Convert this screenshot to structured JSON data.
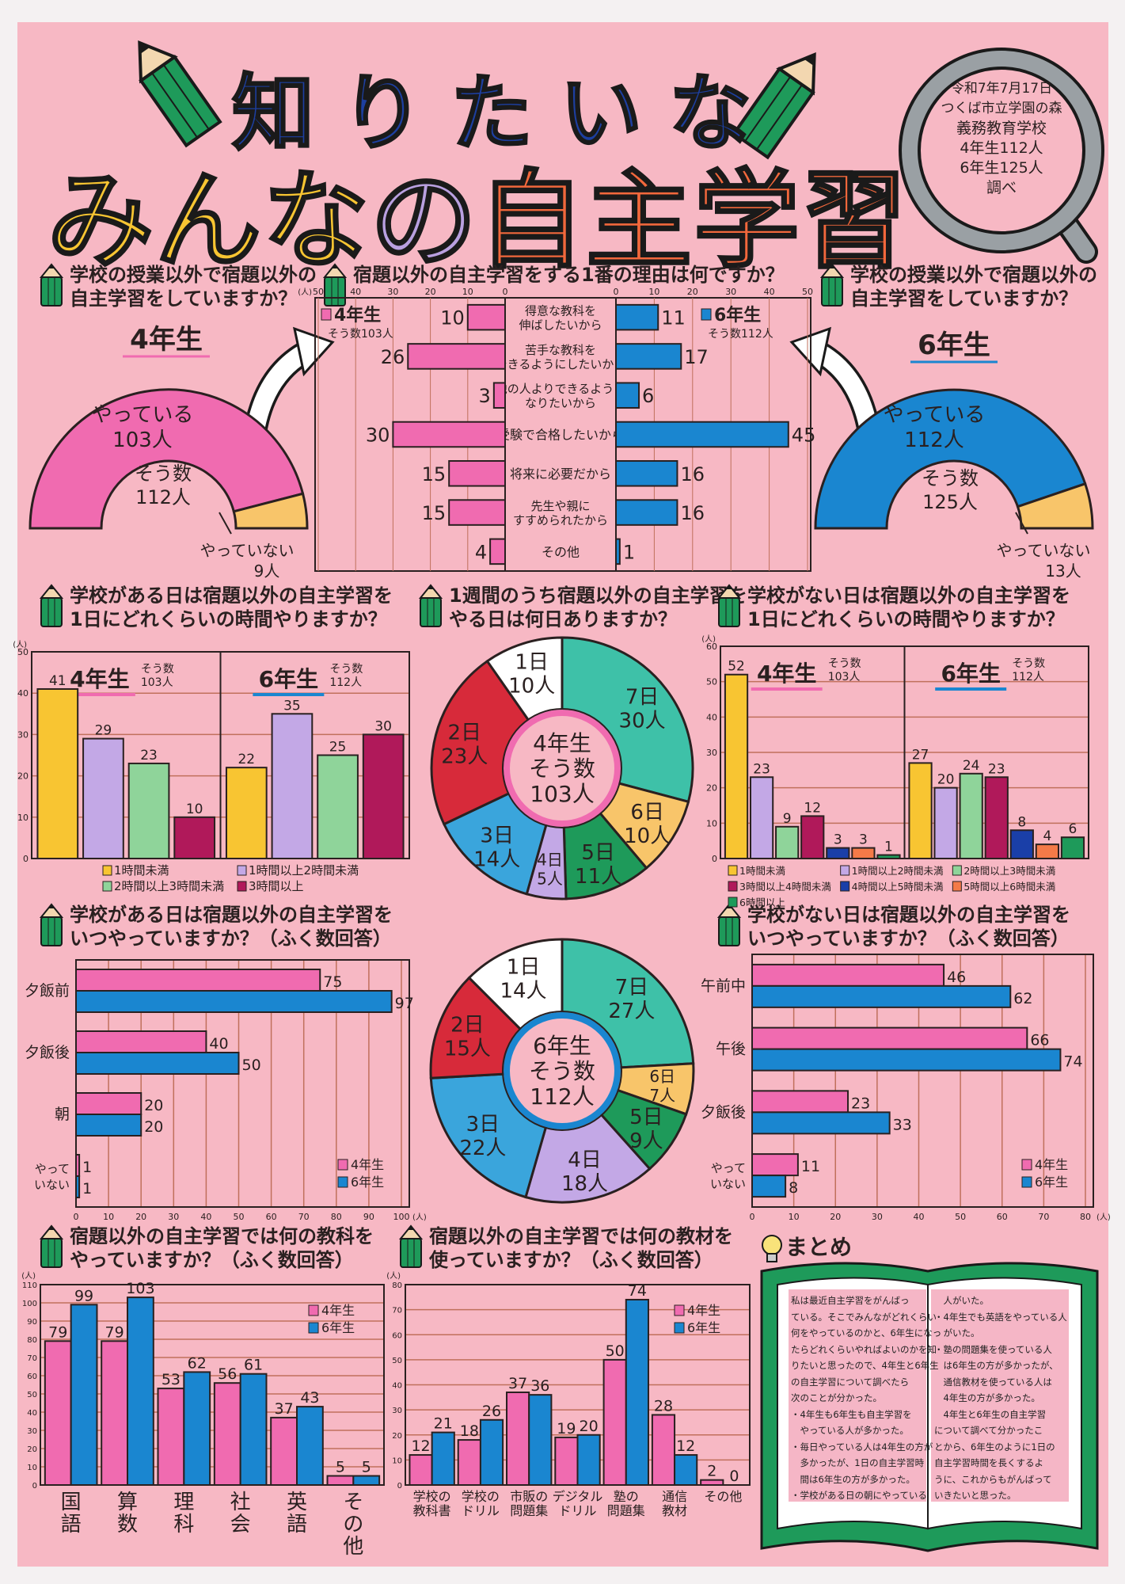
{
  "title": {
    "line1": "知りたいな",
    "line2_a": "みんな",
    "line2_b": "の",
    "line2_c": "自主学習"
  },
  "survey_info": [
    "令和7年7月17日",
    "つくば市立学園の森",
    "義務教育学校",
    "4年生112人",
    "6年生125人",
    "調べ"
  ],
  "questions": {
    "q_do_4": [
      "学校の授業以外で宿題以外の",
      "自主学習をしていますか？"
    ],
    "q_reason": [
      "宿題以外の自主学習をする1番の理由は何ですか？"
    ],
    "q_do_6": [
      "学校の授業以外で宿題以外の",
      "自主学習をしていますか？"
    ],
    "q_time_school": [
      "学校がある日は宿題以外の自主学習を",
      "1日にどれくらいの時間やりますか？"
    ],
    "q_days": [
      "1週間のうち宿題以外の自主学習を",
      "やる日は何日ありますか？"
    ],
    "q_time_noschool": [
      "学校がない日は宿題以外の自主学習を",
      "1日にどれくらいの時間やりますか？"
    ],
    "q_when_school": [
      "学校がある日は宿題以外の自主学習を",
      "いつやっていますか？（ふく数回答）"
    ],
    "q_when_noschool": [
      "学校がない日は宿題以外の自主学習を",
      "いつやっていますか？（ふく数回答）"
    ],
    "q_subjects": [
      "宿題以外の自主学習では何の教科を",
      "やっていますか？（ふく数回答）"
    ],
    "q_materials": [
      "宿題以外の自主学習では何の教材を",
      "使っていますか？（ふく数回答）"
    ]
  },
  "colors": {
    "background": "#f7b8c4",
    "grade4": "#f06bb0",
    "grade6": "#1a86d0",
    "title_blue": "#1d3fa0",
    "title_yellow": "#f8c532",
    "title_purple": "#b9a0e0",
    "title_orange": "#f2683c",
    "book_green": "#1e9a5a"
  },
  "chart_data": [
    {
      "type": "pie",
      "variant": "semi-donut",
      "grade": "4年生",
      "total_label": [
        "そう数",
        "112人"
      ],
      "slices": [
        {
          "label": "やっている",
          "value": 103,
          "value_label": "103人",
          "color": "#f06bb0"
        },
        {
          "label": "やっていない",
          "value": 9,
          "value_label": "9人",
          "color": "#f8c56a"
        }
      ]
    },
    {
      "type": "bar",
      "orientation": "horizontal-butterfly",
      "unit": "(人)",
      "xlim": [
        0,
        50
      ],
      "ticks": [
        50,
        40,
        30,
        20,
        10,
        0
      ],
      "categories": [
        {
          "lines": [
            "得意な教科を",
            "伸ばしたいから"
          ]
        },
        {
          "lines": [
            "苦手な教科を",
            "できるようにしたいから"
          ]
        },
        {
          "lines": [
            "他の人よりできるように",
            "なりたいから"
          ]
        },
        {
          "lines": [
            "受験で合格したいから"
          ]
        },
        {
          "lines": [
            "将来に必要だから"
          ]
        },
        {
          "lines": [
            "先生や親に",
            "すすめられたから"
          ]
        },
        {
          "lines": [
            "その他"
          ]
        }
      ],
      "series": [
        {
          "name": "4年生",
          "total_label": "そう数103人",
          "color": "#f06bb0",
          "values": [
            10,
            26,
            3,
            30,
            15,
            15,
            4
          ]
        },
        {
          "name": "6年生",
          "total_label": "そう数112人",
          "color": "#1a86d0",
          "values": [
            11,
            17,
            6,
            45,
            16,
            16,
            1
          ]
        }
      ]
    },
    {
      "type": "pie",
      "variant": "semi-donut",
      "grade": "6年生",
      "total_label": [
        "そう数",
        "125人"
      ],
      "slices": [
        {
          "label": "やっている",
          "value": 112,
          "value_label": "112人",
          "color": "#1a86d0"
        },
        {
          "label": "やっていない",
          "value": 13,
          "value_label": "13人",
          "color": "#f8c56a"
        }
      ]
    },
    {
      "type": "bar",
      "unit": "(人)",
      "ylim": [
        0,
        50
      ],
      "yticks": [
        0,
        10,
        20,
        30,
        40,
        50
      ],
      "categories": [
        {
          "label": "1時間未満",
          "color": "#f8c532"
        },
        {
          "label": "1時間以上2時間未満",
          "color": "#c3a8e6"
        },
        {
          "label": "2時間以上3時間未満",
          "color": "#8fd49a"
        },
        {
          "label": "3時間以上",
          "color": "#b0195a"
        }
      ],
      "panels": [
        {
          "name": "4年生",
          "accent": "#f06bb0",
          "total_label": [
            "そう数",
            "103人"
          ],
          "values": [
            41,
            29,
            23,
            10
          ]
        },
        {
          "name": "6年生",
          "accent": "#1a86d0",
          "total_label": [
            "そう数",
            "112人"
          ],
          "values": [
            22,
            35,
            25,
            30
          ]
        }
      ]
    },
    {
      "type": "pie",
      "center_label": [
        "4年生",
        "そう数",
        "103人"
      ],
      "ring_color": "#f06bb0",
      "slices": [
        {
          "label": "7日",
          "count": "30人",
          "value": 30,
          "color": "#3ec1a8"
        },
        {
          "label": "6日",
          "count": "10人",
          "value": 10,
          "color": "#f8c56a"
        },
        {
          "label": "5日",
          "count": "11人",
          "value": 11,
          "color": "#1e9a5a"
        },
        {
          "label": "4日",
          "count": "5人",
          "value": 5,
          "color": "#c3a8e6"
        },
        {
          "label": "3日",
          "count": "14人",
          "value": 14,
          "color": "#3aa5dc"
        },
        {
          "label": "2日",
          "count": "23人",
          "value": 23,
          "color": "#d72a3a"
        },
        {
          "label": "1日",
          "count": "10人",
          "value": 10,
          "color": "#ffffff"
        }
      ]
    },
    {
      "type": "bar",
      "unit": "(人)",
      "ylim": [
        0,
        60
      ],
      "yticks": [
        0,
        10,
        20,
        30,
        40,
        50,
        60
      ],
      "categories": [
        {
          "label": "1時間未満",
          "color": "#f8c532"
        },
        {
          "label": "1時間以上2時間未満",
          "color": "#c3a8e6"
        },
        {
          "label": "2時間以上3時間未満",
          "color": "#8fd49a"
        },
        {
          "label": "3時間以上4時間未満",
          "color": "#b0195a"
        },
        {
          "label": "4時間以上5時間未満",
          "color": "#1a3fa8"
        },
        {
          "label": "5時間以上6時間未満",
          "color": "#f47a48"
        },
        {
          "label": "6時間以上",
          "color": "#1e9a5a"
        }
      ],
      "panels": [
        {
          "name": "4年生",
          "accent": "#f06bb0",
          "total_label": [
            "そう数",
            "103人"
          ],
          "values": [
            52,
            23,
            9,
            12,
            3,
            3,
            1
          ]
        },
        {
          "name": "6年生",
          "accent": "#1a86d0",
          "total_label": [
            "そう数",
            "112人"
          ],
          "values": [
            27,
            20,
            24,
            23,
            8,
            4,
            6
          ]
        }
      ]
    },
    {
      "type": "bar",
      "orientation": "horizontal",
      "unit": "(人)",
      "xlim": [
        0,
        100
      ],
      "xticks": [
        0,
        10,
        20,
        30,
        40,
        50,
        60,
        70,
        80,
        90,
        100
      ],
      "categories": [
        {
          "lines": [
            "夕飯前"
          ]
        },
        {
          "lines": [
            "夕飯後"
          ]
        },
        {
          "lines": [
            "朝"
          ]
        },
        {
          "lines": [
            "やって",
            "いない"
          ]
        }
      ],
      "series": [
        {
          "name": "4年生",
          "color": "#f06bb0",
          "values": [
            75,
            40,
            20,
            1
          ]
        },
        {
          "name": "6年生",
          "color": "#1a86d0",
          "values": [
            97,
            50,
            20,
            1
          ]
        }
      ]
    },
    {
      "type": "pie",
      "center_label": [
        "6年生",
        "そう数",
        "112人"
      ],
      "ring_color": "#1a86d0",
      "slices": [
        {
          "label": "7日",
          "count": "27人",
          "value": 27,
          "color": "#3ec1a8"
        },
        {
          "label": "6日",
          "count": "7人",
          "value": 7,
          "color": "#f8c56a"
        },
        {
          "label": "5日",
          "count": "9人",
          "value": 9,
          "color": "#1e9a5a"
        },
        {
          "label": "4日",
          "count": "18人",
          "value": 18,
          "color": "#c3a8e6"
        },
        {
          "label": "3日",
          "count": "22人",
          "value": 22,
          "color": "#3aa5dc"
        },
        {
          "label": "2日",
          "count": "15人",
          "value": 15,
          "color": "#d72a3a"
        },
        {
          "label": "1日",
          "count": "14人",
          "value": 14,
          "color": "#ffffff"
        }
      ]
    },
    {
      "type": "bar",
      "orientation": "horizontal",
      "unit": "(人)",
      "xlim": [
        0,
        80
      ],
      "xticks": [
        0,
        10,
        20,
        30,
        40,
        50,
        60,
        70,
        80
      ],
      "categories": [
        {
          "lines": [
            "午前中"
          ]
        },
        {
          "lines": [
            "午後"
          ]
        },
        {
          "lines": [
            "夕飯後"
          ]
        },
        {
          "lines": [
            "やって",
            "いない"
          ]
        }
      ],
      "series": [
        {
          "name": "4年生",
          "color": "#f06bb0",
          "values": [
            46,
            66,
            23,
            11
          ]
        },
        {
          "name": "6年生",
          "color": "#1a86d0",
          "values": [
            62,
            74,
            33,
            8
          ]
        }
      ]
    },
    {
      "type": "bar",
      "unit": "(人)",
      "ylim": [
        0,
        110
      ],
      "yticks": [
        0,
        10,
        20,
        30,
        40,
        50,
        60,
        70,
        80,
        90,
        100,
        110
      ],
      "categories": [
        {
          "lines": [
            "国",
            "語"
          ]
        },
        {
          "lines": [
            "算",
            "数"
          ]
        },
        {
          "lines": [
            "理",
            "科"
          ]
        },
        {
          "lines": [
            "社",
            "会"
          ]
        },
        {
          "lines": [
            "英",
            "語"
          ]
        },
        {
          "lines": [
            "そ",
            "の",
            "他"
          ]
        }
      ],
      "series": [
        {
          "name": "4年生",
          "color": "#f06bb0",
          "values": [
            79,
            79,
            53,
            56,
            37,
            5
          ]
        },
        {
          "name": "6年生",
          "color": "#1a86d0",
          "values": [
            99,
            103,
            62,
            61,
            43,
            5
          ]
        }
      ]
    },
    {
      "type": "bar",
      "unit": "(人)",
      "ylim": [
        0,
        80
      ],
      "yticks": [
        0,
        10,
        20,
        30,
        40,
        50,
        60,
        70,
        80
      ],
      "categories": [
        {
          "lines": [
            "学校の",
            "教科書"
          ]
        },
        {
          "lines": [
            "学校の",
            "ドリル"
          ]
        },
        {
          "lines": [
            "市販の",
            "問題集"
          ]
        },
        {
          "lines": [
            "デジタル",
            "ドリル"
          ]
        },
        {
          "lines": [
            "塾の",
            "問題集"
          ]
        },
        {
          "lines": [
            "通信",
            "教材"
          ]
        },
        {
          "lines": [
            "その他"
          ]
        }
      ],
      "series": [
        {
          "name": "4年生",
          "color": "#f06bb0",
          "values": [
            12,
            18,
            37,
            19,
            50,
            28,
            2
          ]
        },
        {
          "name": "6年生",
          "color": "#1a86d0",
          "values": [
            21,
            26,
            36,
            20,
            74,
            12,
            0
          ]
        }
      ]
    }
  ],
  "summary": {
    "heading": "まとめ",
    "left_lines": [
      "私は最近自主学習をがんばっ",
      "ている。そこでみんながどれくらい",
      "何をやっているのかと、6年生になっ",
      "たらどれくらいやればよいのかを知",
      "りたいと思ったので、4年生と6年生",
      "の自主学習について調べたら",
      "次のことが分かった。",
      "・4年生も6年生も自主学習を",
      "　やっている人が多かった。",
      "・毎日やっている人は4年生の方が",
      "　多かったが、1日の自主学習時",
      "　間は6年生の方が多かった。",
      "・学校がある日の朝にやっている"
    ],
    "right_lines": [
      "　人がいた。",
      "・4年生でも英語をやっている人",
      "　がいた。",
      "・塾の問題集を使っている人",
      "　は6年生の方が多かったが、",
      "　通信教材を使っている人は",
      "　4年生の方が多かった。",
      "　4年生と6年生の自主学習",
      "について調べて分かったこ",
      "とから、6年生のように1日の",
      "自主学習時間を長くするよ",
      "うに、これからもがんばって",
      "いきたいと思った。"
    ]
  }
}
